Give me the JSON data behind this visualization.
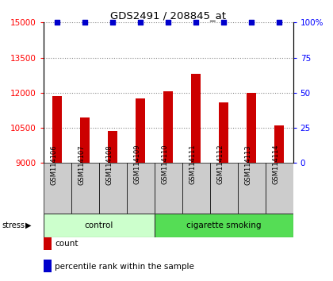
{
  "title": "GDS2491 / 208845_at",
  "samples": [
    "GSM114106",
    "GSM114107",
    "GSM114108",
    "GSM114109",
    "GSM114110",
    "GSM114111",
    "GSM114112",
    "GSM114113",
    "GSM114114"
  ],
  "counts": [
    11850,
    10950,
    10350,
    11750,
    12050,
    12800,
    11600,
    12000,
    10600
  ],
  "bar_color": "#cc0000",
  "dot_color": "#0000cc",
  "ylim_left": [
    9000,
    15000
  ],
  "ylim_right": [
    0,
    100
  ],
  "yticks_left": [
    9000,
    10500,
    12000,
    13500,
    15000
  ],
  "yticks_right": [
    0,
    25,
    50,
    75,
    100
  ],
  "groups": [
    {
      "label": "control",
      "indices": [
        0,
        1,
        2,
        3
      ],
      "color": "#ccffcc"
    },
    {
      "label": "cigarette smoking",
      "indices": [
        4,
        5,
        6,
        7,
        8
      ],
      "color": "#55dd55"
    }
  ],
  "stress_label": "stress",
  "background_color": "#ffffff",
  "sample_box_color": "#cccccc",
  "grid_color": "#888888",
  "legend_count_label": "count",
  "legend_pct_label": "percentile rank within the sample"
}
